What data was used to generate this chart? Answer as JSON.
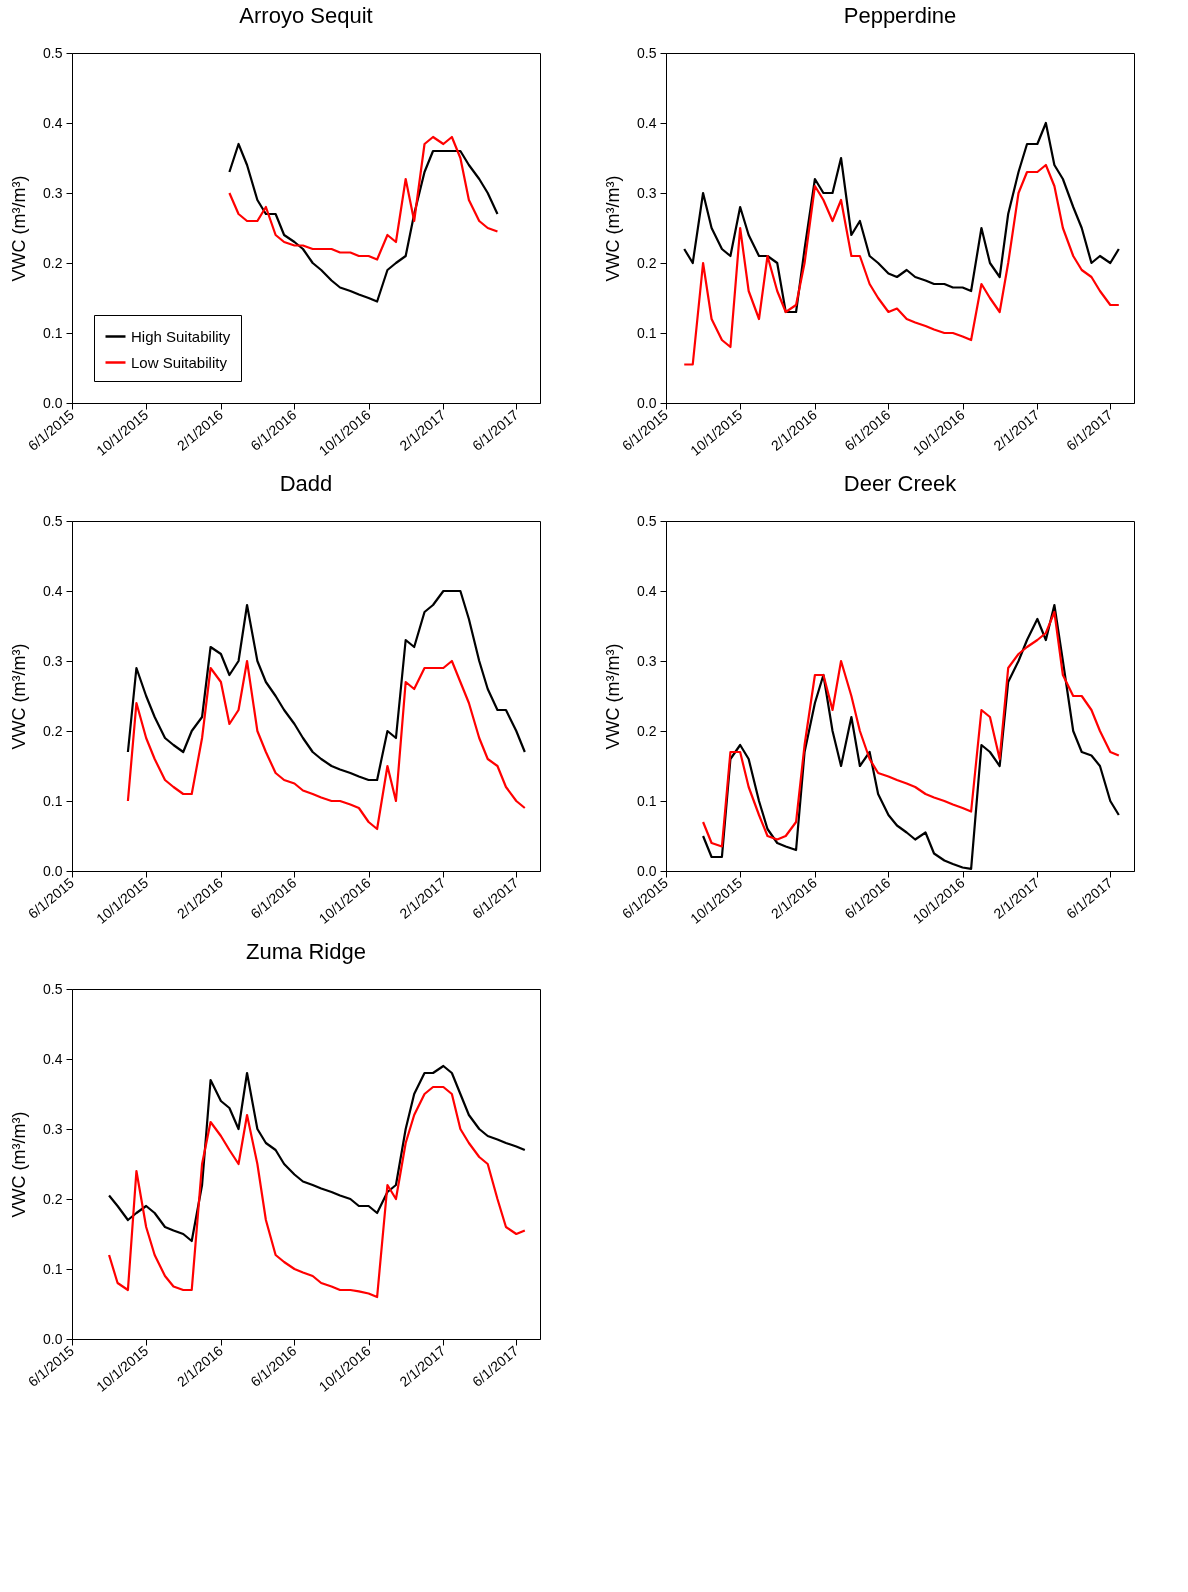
{
  "chart_data": [
    {
      "type": "line",
      "title": "Arroyo Sequit",
      "ylabel": "VWC (m³/m³)",
      "legend": "bottom left",
      "xlim": [
        "2015-06-01",
        "2017-07-10"
      ],
      "ylim": [
        0,
        0.5
      ],
      "xticks": [
        {
          "value": "2015-06-01",
          "label": "6/1/2015"
        },
        {
          "value": "2015-10-01",
          "label": "10/1/2015"
        },
        {
          "value": "2016-02-01",
          "label": "2/1/2016"
        },
        {
          "value": "2016-06-01",
          "label": "6/1/2016"
        },
        {
          "value": "2016-10-01",
          "label": "10/1/2016"
        },
        {
          "value": "2017-02-01",
          "label": "2/1/2017"
        },
        {
          "value": "2017-06-01",
          "label": "6/1/2017"
        }
      ],
      "yticks": [
        {
          "value": 0,
          "label": "0.0"
        },
        {
          "value": 0.1,
          "label": "0.1"
        },
        {
          "value": 0.2,
          "label": "0.2"
        },
        {
          "value": 0.3,
          "label": "0.3"
        },
        {
          "value": 0.4,
          "label": "0.4"
        },
        {
          "value": 0.5,
          "label": "0.5"
        }
      ],
      "x": [
        "2016-02-15",
        "2016-03-01",
        "2016-03-15",
        "2016-04-01",
        "2016-04-15",
        "2016-05-01",
        "2016-05-15",
        "2016-06-01",
        "2016-06-15",
        "2016-07-01",
        "2016-07-15",
        "2016-08-01",
        "2016-08-15",
        "2016-09-01",
        "2016-09-15",
        "2016-10-01",
        "2016-10-15",
        "2016-11-01",
        "2016-11-15",
        "2016-12-01",
        "2016-12-15",
        "2017-01-01",
        "2017-01-15",
        "2017-02-01",
        "2017-02-15",
        "2017-03-01",
        "2017-03-15",
        "2017-04-01",
        "2017-04-15",
        "2017-05-01"
      ],
      "series": [
        {
          "name": "High Suitability",
          "color": "#000000",
          "values": [
            0.33,
            0.37,
            0.34,
            0.29,
            0.27,
            0.27,
            0.24,
            0.23,
            0.22,
            0.2,
            0.19,
            0.175,
            0.165,
            0.16,
            0.155,
            0.15,
            0.145,
            0.19,
            0.2,
            0.21,
            0.27,
            0.33,
            0.36,
            0.36,
            0.36,
            0.36,
            0.34,
            0.32,
            0.3,
            0.27
          ]
        },
        {
          "name": "Low Suitability",
          "color": "#ff0000",
          "values": [
            0.3,
            0.27,
            0.26,
            0.26,
            0.28,
            0.24,
            0.23,
            0.225,
            0.225,
            0.22,
            0.22,
            0.22,
            0.215,
            0.215,
            0.21,
            0.21,
            0.205,
            0.24,
            0.23,
            0.32,
            0.26,
            0.37,
            0.38,
            0.37,
            0.38,
            0.35,
            0.29,
            0.26,
            0.25,
            0.245
          ]
        }
      ]
    },
    {
      "type": "line",
      "title": "Pepperdine",
      "ylabel": "VWC (m³/m³)",
      "xlim": [
        "2015-06-01",
        "2017-07-10"
      ],
      "ylim": [
        0,
        0.5
      ],
      "xticks": [
        {
          "value": "2015-06-01",
          "label": "6/1/2015"
        },
        {
          "value": "2015-10-01",
          "label": "10/1/2015"
        },
        {
          "value": "2016-02-01",
          "label": "2/1/2016"
        },
        {
          "value": "2016-06-01",
          "label": "6/1/2016"
        },
        {
          "value": "2016-10-01",
          "label": "10/1/2016"
        },
        {
          "value": "2017-02-01",
          "label": "2/1/2017"
        },
        {
          "value": "2017-06-01",
          "label": "6/1/2017"
        }
      ],
      "yticks": [
        {
          "value": 0,
          "label": "0.0"
        },
        {
          "value": 0.1,
          "label": "0.1"
        },
        {
          "value": 0.2,
          "label": "0.2"
        },
        {
          "value": 0.3,
          "label": "0.3"
        },
        {
          "value": 0.4,
          "label": "0.4"
        },
        {
          "value": 0.5,
          "label": "0.5"
        }
      ],
      "x": [
        "2015-07-01",
        "2015-07-15",
        "2015-08-01",
        "2015-08-15",
        "2015-09-01",
        "2015-09-15",
        "2015-10-01",
        "2015-10-15",
        "2015-11-01",
        "2015-11-15",
        "2015-12-01",
        "2015-12-15",
        "2016-01-01",
        "2016-01-15",
        "2016-02-01",
        "2016-02-15",
        "2016-03-01",
        "2016-03-15",
        "2016-04-01",
        "2016-04-15",
        "2016-05-01",
        "2016-05-15",
        "2016-06-01",
        "2016-06-15",
        "2016-07-01",
        "2016-07-15",
        "2016-08-01",
        "2016-08-15",
        "2016-09-01",
        "2016-09-15",
        "2016-10-01",
        "2016-10-15",
        "2016-11-01",
        "2016-11-15",
        "2016-12-01",
        "2016-12-15",
        "2017-01-01",
        "2017-01-15",
        "2017-02-01",
        "2017-02-15",
        "2017-03-01",
        "2017-03-15",
        "2017-04-01",
        "2017-04-15",
        "2017-05-01",
        "2017-05-15",
        "2017-06-01",
        "2017-06-15"
      ],
      "series": [
        {
          "color": "#000000",
          "values": [
            0.22,
            0.2,
            0.3,
            0.25,
            0.22,
            0.21,
            0.28,
            0.24,
            0.21,
            0.21,
            0.2,
            0.13,
            0.13,
            0.22,
            0.32,
            0.3,
            0.3,
            0.35,
            0.24,
            0.26,
            0.21,
            0.2,
            0.185,
            0.18,
            0.19,
            0.18,
            0.175,
            0.17,
            0.17,
            0.165,
            0.165,
            0.16,
            0.25,
            0.2,
            0.18,
            0.27,
            0.33,
            0.37,
            0.37,
            0.4,
            0.34,
            0.32,
            0.28,
            0.25,
            0.2,
            0.21,
            0.2,
            0.22
          ]
        },
        {
          "color": "#ff0000",
          "values": [
            0.055,
            0.055,
            0.2,
            0.12,
            0.09,
            0.08,
            0.25,
            0.16,
            0.12,
            0.21,
            0.16,
            0.13,
            0.14,
            0.2,
            0.31,
            0.29,
            0.26,
            0.29,
            0.21,
            0.21,
            0.17,
            0.15,
            0.13,
            0.135,
            0.12,
            0.115,
            0.11,
            0.105,
            0.1,
            0.1,
            0.095,
            0.09,
            0.17,
            0.15,
            0.13,
            0.2,
            0.3,
            0.33,
            0.33,
            0.34,
            0.31,
            0.25,
            0.21,
            0.19,
            0.18,
            0.16,
            0.14,
            0.14
          ]
        }
      ]
    },
    {
      "type": "line",
      "title": "Dadd",
      "ylabel": "VWC (m³/m³)",
      "xlim": [
        "2015-06-01",
        "2017-07-10"
      ],
      "ylim": [
        0,
        0.5
      ],
      "xticks": [
        {
          "value": "2015-06-01",
          "label": "6/1/2015"
        },
        {
          "value": "2015-10-01",
          "label": "10/1/2015"
        },
        {
          "value": "2016-02-01",
          "label": "2/1/2016"
        },
        {
          "value": "2016-06-01",
          "label": "6/1/2016"
        },
        {
          "value": "2016-10-01",
          "label": "10/1/2016"
        },
        {
          "value": "2017-02-01",
          "label": "2/1/2017"
        },
        {
          "value": "2017-06-01",
          "label": "6/1/2017"
        }
      ],
      "yticks": [
        {
          "value": 0,
          "label": "0.0"
        },
        {
          "value": 0.1,
          "label": "0.1"
        },
        {
          "value": 0.2,
          "label": "0.2"
        },
        {
          "value": 0.3,
          "label": "0.3"
        },
        {
          "value": 0.4,
          "label": "0.4"
        },
        {
          "value": 0.5,
          "label": "0.5"
        }
      ],
      "x": [
        "2015-09-01",
        "2015-09-15",
        "2015-10-01",
        "2015-10-15",
        "2015-11-01",
        "2015-11-15",
        "2015-12-01",
        "2015-12-15",
        "2016-01-01",
        "2016-01-15",
        "2016-02-01",
        "2016-02-15",
        "2016-03-01",
        "2016-03-15",
        "2016-04-01",
        "2016-04-15",
        "2016-05-01",
        "2016-05-15",
        "2016-06-01",
        "2016-06-15",
        "2016-07-01",
        "2016-07-15",
        "2016-08-01",
        "2016-08-15",
        "2016-09-01",
        "2016-09-15",
        "2016-10-01",
        "2016-10-15",
        "2016-11-01",
        "2016-11-15",
        "2016-12-01",
        "2016-12-15",
        "2017-01-01",
        "2017-01-15",
        "2017-02-01",
        "2017-02-15",
        "2017-03-01",
        "2017-03-15",
        "2017-04-01",
        "2017-04-15",
        "2017-05-01",
        "2017-05-15",
        "2017-06-01",
        "2017-06-15"
      ],
      "series": [
        {
          "color": "#000000",
          "values": [
            0.17,
            0.29,
            0.25,
            0.22,
            0.19,
            0.18,
            0.17,
            0.2,
            0.22,
            0.32,
            0.31,
            0.28,
            0.3,
            0.38,
            0.3,
            0.27,
            0.25,
            0.23,
            0.21,
            0.19,
            0.17,
            0.16,
            0.15,
            0.145,
            0.14,
            0.135,
            0.13,
            0.13,
            0.2,
            0.19,
            0.33,
            0.32,
            0.37,
            0.38,
            0.4,
            0.4,
            0.4,
            0.36,
            0.3,
            0.26,
            0.23,
            0.23,
            0.2,
            0.17
          ]
        },
        {
          "color": "#ff0000",
          "values": [
            0.1,
            0.24,
            0.19,
            0.16,
            0.13,
            0.12,
            0.11,
            0.11,
            0.19,
            0.29,
            0.27,
            0.21,
            0.23,
            0.3,
            0.2,
            0.17,
            0.14,
            0.13,
            0.125,
            0.115,
            0.11,
            0.105,
            0.1,
            0.1,
            0.095,
            0.09,
            0.07,
            0.06,
            0.15,
            0.1,
            0.27,
            0.26,
            0.29,
            0.29,
            0.29,
            0.3,
            0.27,
            0.24,
            0.19,
            0.16,
            0.15,
            0.12,
            0.1,
            0.09
          ]
        }
      ]
    },
    {
      "type": "line",
      "title": "Deer Creek",
      "ylabel": "VWC (m³/m³)",
      "xlim": [
        "2015-06-01",
        "2017-07-10"
      ],
      "ylim": [
        0,
        0.5
      ],
      "xticks": [
        {
          "value": "2015-06-01",
          "label": "6/1/2015"
        },
        {
          "value": "2015-10-01",
          "label": "10/1/2015"
        },
        {
          "value": "2016-02-01",
          "label": "2/1/2016"
        },
        {
          "value": "2016-06-01",
          "label": "6/1/2016"
        },
        {
          "value": "2016-10-01",
          "label": "10/1/2016"
        },
        {
          "value": "2017-02-01",
          "label": "2/1/2017"
        },
        {
          "value": "2017-06-01",
          "label": "6/1/2017"
        }
      ],
      "yticks": [
        {
          "value": 0,
          "label": "0.0"
        },
        {
          "value": 0.1,
          "label": "0.1"
        },
        {
          "value": 0.2,
          "label": "0.2"
        },
        {
          "value": 0.3,
          "label": "0.3"
        },
        {
          "value": 0.4,
          "label": "0.4"
        },
        {
          "value": 0.5,
          "label": "0.5"
        }
      ],
      "x": [
        "2015-08-01",
        "2015-08-15",
        "2015-09-01",
        "2015-09-15",
        "2015-10-01",
        "2015-10-15",
        "2015-11-01",
        "2015-11-15",
        "2015-12-01",
        "2015-12-15",
        "2016-01-01",
        "2016-01-15",
        "2016-02-01",
        "2016-02-15",
        "2016-03-01",
        "2016-03-15",
        "2016-04-01",
        "2016-04-15",
        "2016-05-01",
        "2016-05-15",
        "2016-06-01",
        "2016-06-15",
        "2016-07-01",
        "2016-07-15",
        "2016-08-01",
        "2016-08-15",
        "2016-09-01",
        "2016-09-15",
        "2016-10-01",
        "2016-10-15",
        "2016-11-01",
        "2016-11-15",
        "2016-12-01",
        "2016-12-15",
        "2017-01-01",
        "2017-01-15",
        "2017-02-01",
        "2017-02-15",
        "2017-03-01",
        "2017-03-15",
        "2017-04-01",
        "2017-04-15",
        "2017-05-01",
        "2017-05-15",
        "2017-06-01",
        "2017-06-15"
      ],
      "series": [
        {
          "color": "#000000",
          "values": [
            0.05,
            0.02,
            0.02,
            0.16,
            0.18,
            0.16,
            0.1,
            0.06,
            0.04,
            0.035,
            0.03,
            0.17,
            0.24,
            0.28,
            0.2,
            0.15,
            0.22,
            0.15,
            0.17,
            0.11,
            0.08,
            0.065,
            0.055,
            0.045,
            0.055,
            0.025,
            0.015,
            0.01,
            0.005,
            0.003,
            0.18,
            0.17,
            0.15,
            0.27,
            0.3,
            0.33,
            0.36,
            0.33,
            0.38,
            0.3,
            0.2,
            0.17,
            0.165,
            0.15,
            0.1,
            0.08
          ]
        },
        {
          "color": "#ff0000",
          "values": [
            0.07,
            0.04,
            0.035,
            0.17,
            0.17,
            0.12,
            0.08,
            0.05,
            0.045,
            0.05,
            0.07,
            0.18,
            0.28,
            0.28,
            0.23,
            0.3,
            0.25,
            0.2,
            0.16,
            0.14,
            0.135,
            0.13,
            0.125,
            0.12,
            0.11,
            0.105,
            0.1,
            0.095,
            0.09,
            0.085,
            0.23,
            0.22,
            0.16,
            0.29,
            0.31,
            0.32,
            0.33,
            0.34,
            0.37,
            0.28,
            0.25,
            0.25,
            0.23,
            0.2,
            0.17,
            0.165
          ]
        }
      ]
    },
    {
      "type": "line",
      "title": "Zuma Ridge",
      "ylabel": "VWC (m³/m³)",
      "xlim": [
        "2015-06-01",
        "2017-07-10"
      ],
      "ylim": [
        0,
        0.5
      ],
      "xticks": [
        {
          "value": "2015-06-01",
          "label": "6/1/2015"
        },
        {
          "value": "2015-10-01",
          "label": "10/1/2015"
        },
        {
          "value": "2016-02-01",
          "label": "2/1/2016"
        },
        {
          "value": "2016-06-01",
          "label": "6/1/2016"
        },
        {
          "value": "2016-10-01",
          "label": "10/1/2016"
        },
        {
          "value": "2017-02-01",
          "label": "2/1/2017"
        },
        {
          "value": "2017-06-01",
          "label": "6/1/2017"
        }
      ],
      "yticks": [
        {
          "value": 0,
          "label": "0.0"
        },
        {
          "value": 0.1,
          "label": "0.1"
        },
        {
          "value": 0.2,
          "label": "0.2"
        },
        {
          "value": 0.3,
          "label": "0.3"
        },
        {
          "value": 0.4,
          "label": "0.4"
        },
        {
          "value": 0.5,
          "label": "0.5"
        }
      ],
      "x": [
        "2015-08-01",
        "2015-08-15",
        "2015-09-01",
        "2015-09-15",
        "2015-10-01",
        "2015-10-15",
        "2015-11-01",
        "2015-11-15",
        "2015-12-01",
        "2015-12-15",
        "2016-01-01",
        "2016-01-15",
        "2016-02-01",
        "2016-02-15",
        "2016-03-01",
        "2016-03-15",
        "2016-04-01",
        "2016-04-15",
        "2016-05-01",
        "2016-05-15",
        "2016-06-01",
        "2016-06-15",
        "2016-07-01",
        "2016-07-15",
        "2016-08-01",
        "2016-08-15",
        "2016-09-01",
        "2016-09-15",
        "2016-10-01",
        "2016-10-15",
        "2016-11-01",
        "2016-11-15",
        "2016-12-01",
        "2016-12-15",
        "2017-01-01",
        "2017-01-15",
        "2017-02-01",
        "2017-02-15",
        "2017-03-01",
        "2017-03-15",
        "2017-04-01",
        "2017-04-15",
        "2017-05-01",
        "2017-05-15",
        "2017-06-01",
        "2017-06-15"
      ],
      "series": [
        {
          "color": "#000000",
          "values": [
            0.205,
            0.19,
            0.17,
            0.18,
            0.19,
            0.18,
            0.16,
            0.155,
            0.15,
            0.14,
            0.22,
            0.37,
            0.34,
            0.33,
            0.3,
            0.38,
            0.3,
            0.28,
            0.27,
            0.25,
            0.235,
            0.225,
            0.22,
            0.215,
            0.21,
            0.205,
            0.2,
            0.19,
            0.19,
            0.18,
            0.21,
            0.22,
            0.3,
            0.35,
            0.38,
            0.38,
            0.39,
            0.38,
            0.35,
            0.32,
            0.3,
            0.29,
            0.285,
            0.28,
            0.275,
            0.27
          ]
        },
        {
          "color": "#ff0000",
          "values": [
            0.12,
            0.08,
            0.07,
            0.24,
            0.16,
            0.12,
            0.09,
            0.075,
            0.07,
            0.07,
            0.25,
            0.31,
            0.29,
            0.27,
            0.25,
            0.32,
            0.25,
            0.17,
            0.12,
            0.11,
            0.1,
            0.095,
            0.09,
            0.08,
            0.075,
            0.07,
            0.07,
            0.068,
            0.065,
            0.06,
            0.22,
            0.2,
            0.28,
            0.32,
            0.35,
            0.36,
            0.36,
            0.35,
            0.3,
            0.28,
            0.26,
            0.25,
            0.2,
            0.16,
            0.15,
            0.155
          ]
        }
      ]
    }
  ]
}
